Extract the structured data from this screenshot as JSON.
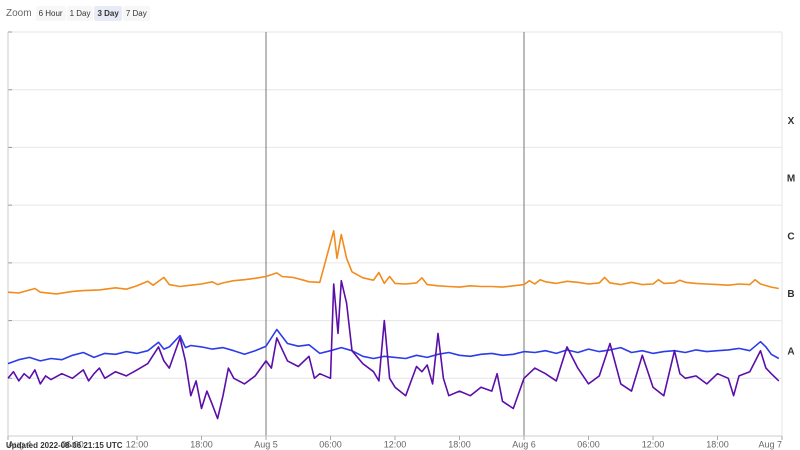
{
  "zoom": {
    "label": "Zoom",
    "buttons": [
      "6 Hour",
      "1 Day",
      "3 Day",
      "7 Day"
    ],
    "selected": "3 Day"
  },
  "updated": "Updated 2022-08-06 21:15 UTC",
  "chart_data": {
    "type": "line",
    "title": "",
    "xlabel": "",
    "ylabel": "",
    "x_unit": "hours since Aug 4 00:00 UTC",
    "xlim": [
      0,
      72
    ],
    "x_ticks": [
      {
        "x": 0,
        "label": "Aug 4"
      },
      {
        "x": 6,
        "label": "06:00"
      },
      {
        "x": 12,
        "label": "12:00"
      },
      {
        "x": 18,
        "label": "18:00"
      },
      {
        "x": 24,
        "label": "Aug 5"
      },
      {
        "x": 30,
        "label": "06:00"
      },
      {
        "x": 36,
        "label": "12:00"
      },
      {
        "x": 42,
        "label": "18:00"
      },
      {
        "x": 48,
        "label": "Aug 6"
      },
      {
        "x": 54,
        "label": "06:00"
      },
      {
        "x": 60,
        "label": "12:00"
      },
      {
        "x": 66,
        "label": "18:00"
      },
      {
        "x": 72,
        "label": "Aug 7"
      }
    ],
    "day_lines": [
      24,
      48
    ],
    "y_scale": "log",
    "ylim": [
      1e-09,
      0.01
    ],
    "class_labels": [
      {
        "label": "A",
        "y": 3e-08
      },
      {
        "label": "B",
        "y": 3e-07
      },
      {
        "label": "C",
        "y": 3e-06
      },
      {
        "label": "M",
        "y": 3e-05
      },
      {
        "label": "X",
        "y": 0.0003
      }
    ],
    "grid": true,
    "series": [
      {
        "color": "#f28c1c",
        "points": [
          [
            0,
            3.1e-07
          ],
          [
            1,
            3e-07
          ],
          [
            2.5,
            3.6e-07
          ],
          [
            3,
            3.1e-07
          ],
          [
            4.5,
            2.9e-07
          ],
          [
            6,
            3.2e-07
          ],
          [
            7,
            3.3e-07
          ],
          [
            8.5,
            3.4e-07
          ],
          [
            10,
            3.7e-07
          ],
          [
            11,
            3.5e-07
          ],
          [
            12,
            4e-07
          ],
          [
            13,
            4.8e-07
          ],
          [
            13.5,
            4.1e-07
          ],
          [
            14.5,
            5.6e-07
          ],
          [
            15,
            4.2e-07
          ],
          [
            16,
            3.9e-07
          ],
          [
            17,
            4.1e-07
          ],
          [
            18,
            4.3e-07
          ],
          [
            19,
            4.7e-07
          ],
          [
            19.5,
            4.2e-07
          ],
          [
            20,
            4.5e-07
          ],
          [
            21,
            4.9e-07
          ],
          [
            22,
            5.1e-07
          ],
          [
            23,
            5.4e-07
          ],
          [
            24,
            5.8e-07
          ],
          [
            25,
            6.7e-07
          ],
          [
            25.5,
            5.8e-07
          ],
          [
            26.5,
            5.6e-07
          ],
          [
            27.5,
            5e-07
          ],
          [
            28,
            4.7e-07
          ],
          [
            29,
            4.6e-07
          ],
          [
            30.3,
            3.6e-06
          ],
          [
            30.6,
            1.2e-06
          ],
          [
            31,
            3.1e-06
          ],
          [
            31.5,
            1.2e-06
          ],
          [
            32,
            7e-07
          ],
          [
            33,
            5.5e-07
          ],
          [
            34,
            5e-07
          ],
          [
            34.5,
            6.8e-07
          ],
          [
            35,
            4.4e-07
          ],
          [
            35.5,
            5.8e-07
          ],
          [
            36,
            4.4e-07
          ],
          [
            37,
            4.3e-07
          ],
          [
            38,
            4.5e-07
          ],
          [
            38.5,
            5.5e-07
          ],
          [
            39,
            4.2e-07
          ],
          [
            40,
            4e-07
          ],
          [
            41,
            3.9e-07
          ],
          [
            42,
            3.8e-07
          ],
          [
            43,
            4e-07
          ],
          [
            44,
            3.9e-07
          ],
          [
            45,
            3.9e-07
          ],
          [
            46,
            3.8e-07
          ],
          [
            47,
            4e-07
          ],
          [
            48,
            4.2e-07
          ],
          [
            48.5,
            4.9e-07
          ],
          [
            49,
            4.3e-07
          ],
          [
            49.5,
            5.1e-07
          ],
          [
            50,
            4.7e-07
          ],
          [
            51,
            4.4e-07
          ],
          [
            52,
            4.8e-07
          ],
          [
            53,
            4.6e-07
          ],
          [
            54,
            4.3e-07
          ],
          [
            55,
            4.5e-07
          ],
          [
            55.5,
            5.6e-07
          ],
          [
            56,
            4.5e-07
          ],
          [
            57,
            4.2e-07
          ],
          [
            58,
            4.6e-07
          ],
          [
            59,
            4.2e-07
          ],
          [
            60,
            4.3e-07
          ],
          [
            60.5,
            5.1e-07
          ],
          [
            61,
            4.4e-07
          ],
          [
            62,
            4.5e-07
          ],
          [
            62.5,
            5e-07
          ],
          [
            63,
            4.6e-07
          ],
          [
            64,
            4.4e-07
          ],
          [
            65,
            4.3e-07
          ],
          [
            66,
            4.2e-07
          ],
          [
            67,
            4.1e-07
          ],
          [
            68,
            4.3e-07
          ],
          [
            69,
            4.2e-07
          ],
          [
            69.5,
            5.1e-07
          ],
          [
            70,
            4.3e-07
          ],
          [
            71,
            3.8e-07
          ],
          [
            71.7,
            3.6e-07
          ]
        ]
      },
      {
        "color": "#2c3ce8",
        "points": [
          [
            0,
            1.8e-08
          ],
          [
            1,
            2.1e-08
          ],
          [
            2,
            2.3e-08
          ],
          [
            3,
            2e-08
          ],
          [
            4,
            2.2e-08
          ],
          [
            5,
            2.1e-08
          ],
          [
            6,
            2.5e-08
          ],
          [
            7,
            2.8e-08
          ],
          [
            8,
            2.3e-08
          ],
          [
            9,
            2.7e-08
          ],
          [
            10,
            2.6e-08
          ],
          [
            11,
            2.9e-08
          ],
          [
            12,
            2.7e-08
          ],
          [
            13,
            3e-08
          ],
          [
            14,
            4.2e-08
          ],
          [
            14.5,
            3.2e-08
          ],
          [
            15,
            3.5e-08
          ],
          [
            16,
            5.5e-08
          ],
          [
            16.5,
            3.4e-08
          ],
          [
            17,
            3.7e-08
          ],
          [
            18,
            3.5e-08
          ],
          [
            19,
            3.2e-08
          ],
          [
            20,
            3.4e-08
          ],
          [
            21,
            3e-08
          ],
          [
            22,
            2.6e-08
          ],
          [
            23,
            3e-08
          ],
          [
            24,
            3.6e-08
          ],
          [
            25,
            7e-08
          ],
          [
            26,
            4e-08
          ],
          [
            27,
            3.6e-08
          ],
          [
            28,
            3.8e-08
          ],
          [
            29,
            2.7e-08
          ],
          [
            30,
            3e-08
          ],
          [
            31,
            3.4e-08
          ],
          [
            32,
            3e-08
          ],
          [
            33,
            2.4e-08
          ],
          [
            34,
            2.2e-08
          ],
          [
            35,
            2.4e-08
          ],
          [
            36,
            2.3e-08
          ],
          [
            37,
            2.2e-08
          ],
          [
            38,
            2.5e-08
          ],
          [
            39,
            2.3e-08
          ],
          [
            40,
            2.6e-08
          ],
          [
            41,
            2.8e-08
          ],
          [
            42,
            2.5e-08
          ],
          [
            43,
            2.4e-08
          ],
          [
            44,
            2.6e-08
          ],
          [
            45,
            2.7e-08
          ],
          [
            46,
            2.5e-08
          ],
          [
            47,
            2.6e-08
          ],
          [
            48,
            2.9e-08
          ],
          [
            49,
            2.8e-08
          ],
          [
            50,
            3e-08
          ],
          [
            51,
            2.7e-08
          ],
          [
            52,
            3.1e-08
          ],
          [
            53,
            2.8e-08
          ],
          [
            54,
            3.2e-08
          ],
          [
            55,
            2.9e-08
          ],
          [
            56,
            3.1e-08
          ],
          [
            57,
            3.4e-08
          ],
          [
            58,
            2.8e-08
          ],
          [
            59,
            3e-08
          ],
          [
            60,
            2.7e-08
          ],
          [
            61,
            2.9e-08
          ],
          [
            62,
            3e-08
          ],
          [
            63,
            2.8e-08
          ],
          [
            64,
            3.1e-08
          ],
          [
            65,
            2.9e-08
          ],
          [
            66,
            3e-08
          ],
          [
            67,
            3.1e-08
          ],
          [
            68,
            3.3e-08
          ],
          [
            69,
            3e-08
          ],
          [
            70,
            4.3e-08
          ],
          [
            70.5,
            3.5e-08
          ],
          [
            71,
            2.6e-08
          ],
          [
            71.7,
            2.2e-08
          ]
        ]
      },
      {
        "color": "#5b0fa8",
        "points": [
          [
            0,
            1e-08
          ],
          [
            0.5,
            1.3e-08
          ],
          [
            1,
            9e-09
          ],
          [
            1.5,
            1.2e-08
          ],
          [
            2,
            1e-08
          ],
          [
            2.5,
            1.4e-08
          ],
          [
            3,
            8e-09
          ],
          [
            3.5,
            1.1e-08
          ],
          [
            4,
            9.5e-09
          ],
          [
            5,
            1.2e-08
          ],
          [
            6,
            1e-08
          ],
          [
            7,
            1.4e-08
          ],
          [
            7.5,
            9e-09
          ],
          [
            8,
            1.2e-08
          ],
          [
            8.5,
            1.5e-08
          ],
          [
            9,
            1e-08
          ],
          [
            10,
            1.3e-08
          ],
          [
            11,
            1.1e-08
          ],
          [
            12,
            1.4e-08
          ],
          [
            13,
            1.8e-08
          ],
          [
            14,
            3.5e-08
          ],
          [
            14.5,
            2e-08
          ],
          [
            15,
            1.5e-08
          ],
          [
            16,
            5e-08
          ],
          [
            16.5,
            2e-08
          ],
          [
            17,
            5e-09
          ],
          [
            17.5,
            9e-09
          ],
          [
            18,
            3e-09
          ],
          [
            18.5,
            6e-09
          ],
          [
            19,
            3.5e-09
          ],
          [
            19.5,
            2e-09
          ],
          [
            20,
            5e-09
          ],
          [
            20.5,
            1.5e-08
          ],
          [
            21,
            1e-08
          ],
          [
            22,
            8e-09
          ],
          [
            23,
            1.1e-08
          ],
          [
            24,
            2e-08
          ],
          [
            24.5,
            1.5e-08
          ],
          [
            25,
            5e-08
          ],
          [
            26,
            2e-08
          ],
          [
            27,
            1.6e-08
          ],
          [
            28,
            2.4e-08
          ],
          [
            28.5,
            1e-08
          ],
          [
            29,
            1.2e-08
          ],
          [
            30,
            1e-08
          ],
          [
            30.3,
            4.3e-07
          ],
          [
            30.7,
            6e-08
          ],
          [
            31,
            4.9e-07
          ],
          [
            31.5,
            2e-07
          ],
          [
            32,
            3e-08
          ],
          [
            33,
            1.8e-08
          ],
          [
            34,
            1.3e-08
          ],
          [
            34.5,
            9e-09
          ],
          [
            35,
            1e-07
          ],
          [
            35.5,
            1e-08
          ],
          [
            36,
            7e-09
          ],
          [
            37,
            5e-09
          ],
          [
            38,
            1.6e-08
          ],
          [
            38.5,
            1.3e-08
          ],
          [
            39,
            1.7e-08
          ],
          [
            39.5,
            8e-09
          ],
          [
            40,
            6e-08
          ],
          [
            40.5,
            1e-08
          ],
          [
            41,
            5e-09
          ],
          [
            42,
            6e-09
          ],
          [
            43,
            5e-09
          ],
          [
            44,
            7e-09
          ],
          [
            45,
            6e-09
          ],
          [
            45.5,
            1.2e-08
          ],
          [
            46,
            4e-09
          ],
          [
            47,
            3e-09
          ],
          [
            48,
            1e-08
          ],
          [
            49,
            1.5e-08
          ],
          [
            50,
            1.2e-08
          ],
          [
            51,
            9e-09
          ],
          [
            52,
            3.5e-08
          ],
          [
            53,
            1.5e-08
          ],
          [
            54,
            8e-09
          ],
          [
            55,
            1.1e-08
          ],
          [
            56,
            4e-08
          ],
          [
            57,
            8e-09
          ],
          [
            58,
            6e-09
          ],
          [
            59,
            2.5e-08
          ],
          [
            60,
            7e-09
          ],
          [
            61,
            5e-09
          ],
          [
            62,
            3e-08
          ],
          [
            62.5,
            1.2e-08
          ],
          [
            63,
            1e-08
          ],
          [
            64,
            1.1e-08
          ],
          [
            65,
            8e-09
          ],
          [
            66,
            1.2e-08
          ],
          [
            67,
            1e-08
          ],
          [
            67.5,
            5e-09
          ],
          [
            68,
            1.1e-08
          ],
          [
            69,
            1.3e-08
          ],
          [
            70,
            3e-08
          ],
          [
            70.5,
            1.5e-08
          ],
          [
            71,
            1.2e-08
          ],
          [
            71.7,
            9e-09
          ]
        ]
      }
    ]
  }
}
